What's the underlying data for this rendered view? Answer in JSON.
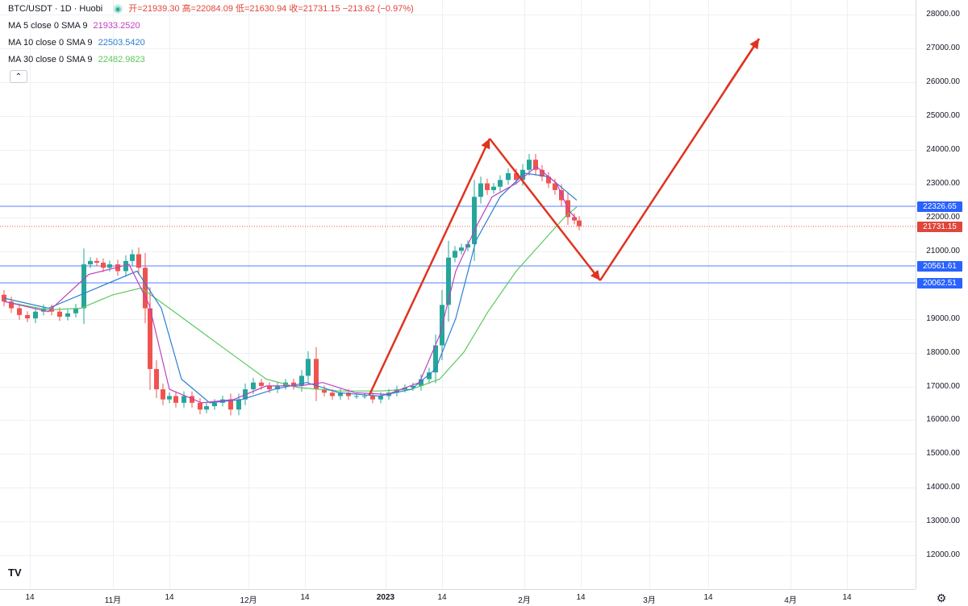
{
  "header": {
    "symbol": "BTC/USDT · 1D · Huobi",
    "ohlc": "开=21939.30 高=22084.09 低=21630.94 收=21731.15 −213.62 (−0.97%)",
    "ma5": {
      "label": "MA 5 close 0 SMA 9",
      "value": "21933.2520",
      "color": "#c03ec0"
    },
    "ma10": {
      "label": "MA 10 close 0 SMA 9",
      "value": "22503.5420",
      "color": "#2a7fd4"
    },
    "ma30": {
      "label": "MA 30 close 0 SMA 9",
      "value": "22482.9823",
      "color": "#5cc85c"
    },
    "collapse_symbol": "⌃"
  },
  "price_axis": [
    "28000.00",
    "27000.00",
    "26000.00",
    "25000.00",
    "24000.00",
    "23000.00",
    "22000.00",
    "21000.00",
    "19000.00",
    "18000.00",
    "17000.00",
    "16000.00",
    "15000.00",
    "14000.00",
    "13000.00",
    "12000.00"
  ],
  "time_axis": [
    {
      "label": "14",
      "bold": false
    },
    {
      "label": "11月",
      "bold": false
    },
    {
      "label": "14",
      "bold": false
    },
    {
      "label": "12月",
      "bold": false
    },
    {
      "label": "14",
      "bold": false
    },
    {
      "label": "2023",
      "bold": true
    },
    {
      "label": "14",
      "bold": false
    },
    {
      "label": "2月",
      "bold": false
    },
    {
      "label": "14",
      "bold": false
    },
    {
      "label": "3月",
      "bold": false
    },
    {
      "label": "14",
      "bold": false
    },
    {
      "label": "4月",
      "bold": false
    },
    {
      "label": "14",
      "bold": false
    }
  ],
  "levels": [
    {
      "value": "22326.65",
      "color": "#2962ff"
    },
    {
      "value": "21731.15",
      "color": "#e0463a"
    },
    {
      "value": "20561.61",
      "color": "#2962ff"
    },
    {
      "value": "20062.51",
      "color": "#2962ff"
    }
  ],
  "colors": {
    "up": "#26a69a",
    "down": "#ef5350",
    "arrow": "#e0331f"
  },
  "logo": "TV",
  "icons": {
    "settings": "gear-icon",
    "eye": "eye-icon",
    "logo": "tradingview-logo"
  }
}
